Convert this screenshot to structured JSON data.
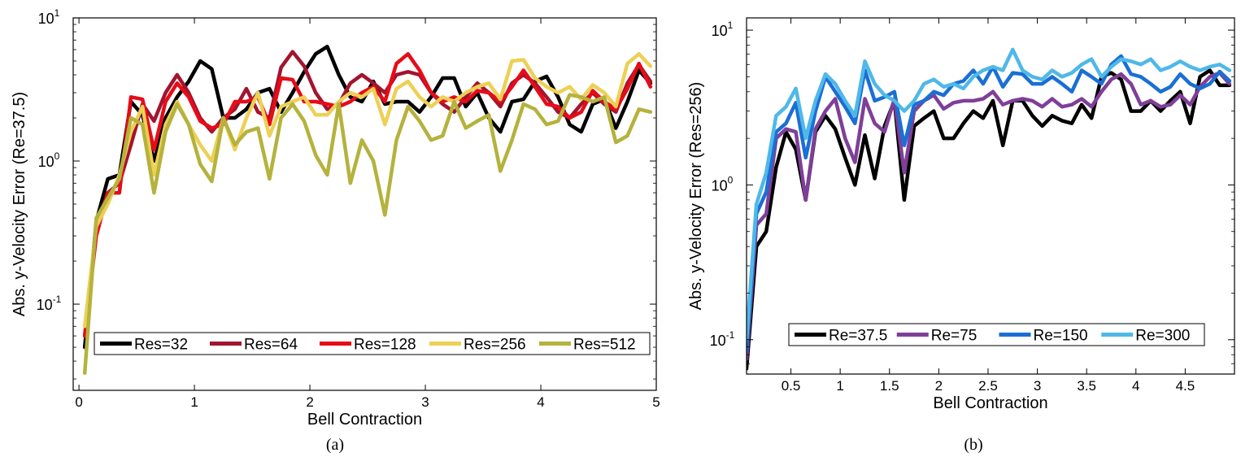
{
  "chart_data": [
    {
      "id": "a",
      "type": "line",
      "yscale": "log",
      "caption": "(a)",
      "xlabel": "Bell Contraction",
      "ylabel": "Abs. y-Velocity Error (Re=37.5)",
      "xlim": [
        -0.05,
        5
      ],
      "ylim": [
        0.025,
        10
      ],
      "xticks": [
        0,
        1,
        2,
        3,
        4,
        5
      ],
      "xtick_labels": [
        "0",
        "1",
        "2",
        "3",
        "4",
        "5"
      ],
      "yticks": [
        {
          "base": "10",
          "exp": "-1",
          "value": 0.1
        },
        {
          "base": "10",
          "exp": "0",
          "value": 1
        },
        {
          "base": "10",
          "exp": "1",
          "value": 10
        }
      ],
      "legend_location": "bottom",
      "series": [
        {
          "name": "Res=32",
          "color": "#000000",
          "x": [
            0.05,
            0.15,
            0.25,
            0.35,
            0.45,
            0.55,
            0.65,
            0.75,
            0.85,
            0.95,
            1.05,
            1.15,
            1.25,
            1.35,
            1.45,
            1.55,
            1.65,
            1.75,
            1.85,
            1.95,
            2.05,
            2.15,
            2.25,
            2.35,
            2.45,
            2.55,
            2.65,
            2.75,
            2.85,
            2.95,
            3.05,
            3.15,
            3.25,
            3.35,
            3.45,
            3.55,
            3.65,
            3.75,
            3.85,
            3.95,
            4.05,
            4.15,
            4.25,
            4.35,
            4.45,
            4.55,
            4.65,
            4.75,
            4.85,
            4.95
          ],
          "y": [
            0.05,
            0.38,
            0.75,
            0.8,
            2.6,
            2.1,
            1.0,
            2.0,
            2.8,
            3.6,
            5.0,
            4.4,
            2.0,
            2.0,
            2.3,
            3.0,
            3.2,
            2.2,
            3.0,
            4.2,
            5.6,
            6.3,
            4.0,
            2.8,
            2.6,
            3.6,
            2.5,
            2.6,
            2.6,
            2.2,
            2.8,
            3.8,
            3.8,
            2.4,
            3.0,
            2.0,
            1.6,
            2.6,
            2.7,
            3.6,
            3.9,
            2.8,
            1.8,
            1.6,
            2.5,
            2.7,
            1.7,
            2.6,
            4.3,
            3.5
          ]
        },
        {
          "name": "Res=64",
          "color": "#a3142e",
          "x": [
            0.05,
            0.15,
            0.25,
            0.35,
            0.45,
            0.55,
            0.65,
            0.75,
            0.85,
            0.95,
            1.05,
            1.15,
            1.25,
            1.35,
            1.45,
            1.55,
            1.65,
            1.75,
            1.85,
            1.95,
            2.05,
            2.15,
            2.25,
            2.35,
            2.45,
            2.55,
            2.65,
            2.75,
            2.85,
            2.95,
            3.05,
            3.15,
            3.25,
            3.35,
            3.45,
            3.55,
            3.65,
            3.75,
            3.85,
            3.95,
            4.05,
            4.15,
            4.25,
            4.35,
            4.45,
            4.55,
            4.65,
            4.75,
            4.85,
            4.95
          ],
          "y": [
            0.06,
            0.35,
            0.6,
            0.7,
            1.3,
            2.5,
            1.9,
            3.0,
            4.0,
            3.0,
            2.0,
            1.6,
            2.0,
            2.3,
            3.2,
            2.2,
            2.0,
            4.5,
            5.8,
            4.6,
            3.0,
            2.3,
            2.5,
            3.5,
            4.0,
            3.5,
            3.0,
            4.0,
            4.2,
            4.0,
            3.0,
            2.5,
            2.2,
            2.8,
            3.5,
            3.0,
            2.4,
            3.5,
            4.0,
            3.5,
            2.8,
            2.2,
            2.0,
            2.5,
            3.0,
            2.5,
            2.2,
            3.5,
            4.7,
            3.6
          ]
        },
        {
          "name": "Res=128",
          "color": "#e60c18",
          "x": [
            0.05,
            0.15,
            0.25,
            0.35,
            0.45,
            0.55,
            0.65,
            0.75,
            0.85,
            0.95,
            1.05,
            1.15,
            1.25,
            1.35,
            1.45,
            1.55,
            1.65,
            1.75,
            1.85,
            1.95,
            2.05,
            2.15,
            2.25,
            2.35,
            2.45,
            2.55,
            2.65,
            2.75,
            2.85,
            2.95,
            3.05,
            3.15,
            3.25,
            3.35,
            3.45,
            3.55,
            3.65,
            3.75,
            3.85,
            3.95,
            4.05,
            4.15,
            4.25,
            4.35,
            4.45,
            4.55,
            4.65,
            4.75,
            4.85,
            4.95
          ],
          "y": [
            0.06,
            0.3,
            0.6,
            0.6,
            2.8,
            2.7,
            1.2,
            2.6,
            3.5,
            2.8,
            1.9,
            1.7,
            1.8,
            2.6,
            2.6,
            2.8,
            1.8,
            3.8,
            3.7,
            2.6,
            2.6,
            2.5,
            2.4,
            2.6,
            3.0,
            3.3,
            2.6,
            4.8,
            5.6,
            4.3,
            3.0,
            2.6,
            2.8,
            2.6,
            3.1,
            3.0,
            2.6,
            3.3,
            4.3,
            3.3,
            2.5,
            2.4,
            2.0,
            2.2,
            3.1,
            2.6,
            2.3,
            3.2,
            4.8,
            3.3
          ]
        },
        {
          "name": "Res=256",
          "color": "#edd055",
          "x": [
            0.05,
            0.15,
            0.25,
            0.35,
            0.45,
            0.55,
            0.65,
            0.75,
            0.85,
            0.95,
            1.05,
            1.15,
            1.25,
            1.35,
            1.45,
            1.55,
            1.65,
            1.75,
            1.85,
            1.95,
            2.05,
            2.15,
            2.25,
            2.35,
            2.45,
            2.55,
            2.65,
            2.75,
            2.85,
            2.95,
            3.05,
            3.15,
            3.25,
            3.35,
            3.45,
            3.55,
            3.65,
            3.75,
            3.85,
            3.95,
            4.05,
            4.15,
            4.25,
            4.35,
            4.45,
            4.55,
            4.65,
            4.75,
            4.85,
            4.95
          ],
          "y": [
            0.07,
            0.35,
            0.5,
            0.8,
            1.6,
            2.4,
            0.8,
            1.8,
            2.6,
            1.8,
            1.3,
            1.0,
            2.0,
            1.2,
            2.0,
            3.0,
            1.5,
            2.4,
            2.6,
            2.8,
            2.1,
            2.1,
            2.6,
            3.0,
            2.8,
            3.2,
            1.8,
            3.2,
            3.6,
            2.8,
            2.4,
            2.8,
            2.6,
            3.0,
            3.3,
            3.5,
            2.7,
            5.0,
            5.1,
            3.8,
            3.3,
            3.0,
            3.3,
            2.7,
            3.4,
            3.0,
            2.4,
            4.8,
            5.6,
            4.6
          ]
        },
        {
          "name": "Res=512",
          "color": "#b5b23d",
          "x": [
            0.05,
            0.15,
            0.25,
            0.35,
            0.45,
            0.55,
            0.65,
            0.75,
            0.85,
            0.95,
            1.05,
            1.15,
            1.25,
            1.35,
            1.45,
            1.55,
            1.65,
            1.75,
            1.85,
            1.95,
            2.05,
            2.15,
            2.25,
            2.35,
            2.45,
            2.55,
            2.65,
            2.75,
            2.85,
            2.95,
            3.05,
            3.15,
            3.25,
            3.35,
            3.45,
            3.55,
            3.65,
            3.75,
            3.85,
            3.95,
            4.05,
            4.15,
            4.25,
            4.35,
            4.45,
            4.55,
            4.65,
            4.75,
            4.85,
            4.95
          ],
          "y": [
            0.033,
            0.4,
            0.55,
            0.75,
            2.0,
            1.8,
            0.6,
            1.6,
            2.5,
            1.8,
            0.95,
            0.72,
            2.0,
            1.3,
            1.6,
            1.7,
            0.75,
            2.0,
            2.5,
            1.9,
            1.1,
            0.8,
            2.5,
            0.7,
            1.4,
            1.0,
            0.42,
            1.4,
            2.4,
            1.9,
            1.4,
            1.5,
            2.6,
            1.7,
            1.9,
            2.1,
            0.85,
            1.4,
            2.5,
            2.3,
            1.8,
            1.9,
            2.9,
            2.8,
            2.6,
            2.8,
            1.35,
            1.5,
            2.3,
            2.2
          ]
        }
      ]
    },
    {
      "id": "b",
      "type": "line",
      "yscale": "log",
      "caption": "(b)",
      "xlabel": "Bell Contraction",
      "ylabel": "Abs. y-Velocity Error (Res=256)",
      "xlim": [
        0.05,
        5
      ],
      "ylim": [
        0.06,
        12
      ],
      "xticks": [
        0.5,
        1,
        1.5,
        2,
        2.5,
        3,
        3.5,
        4,
        4.5
      ],
      "xtick_labels": [
        "0.5",
        "1",
        "1.5",
        "2",
        "2.5",
        "3",
        "3.5",
        "4",
        "4.5"
      ],
      "yticks": [
        {
          "base": "10",
          "exp": "-1",
          "value": 0.1
        },
        {
          "base": "10",
          "exp": "0",
          "value": 1
        },
        {
          "base": "10",
          "exp": "1",
          "value": 10
        }
      ],
      "legend_location": "bottom",
      "series": [
        {
          "name": "Re=37.5",
          "color": "#000000",
          "x": [
            0.05,
            0.15,
            0.25,
            0.35,
            0.45,
            0.55,
            0.65,
            0.75,
            0.85,
            0.95,
            1.05,
            1.15,
            1.25,
            1.35,
            1.45,
            1.55,
            1.65,
            1.75,
            1.85,
            1.95,
            2.05,
            2.15,
            2.25,
            2.35,
            2.45,
            2.55,
            2.65,
            2.75,
            2.85,
            2.95,
            3.05,
            3.15,
            3.25,
            3.35,
            3.45,
            3.55,
            3.65,
            3.75,
            3.85,
            3.95,
            4.05,
            4.15,
            4.25,
            4.35,
            4.45,
            4.55,
            4.65,
            4.75,
            4.85,
            4.95
          ],
          "y": [
            0.065,
            0.4,
            0.5,
            1.3,
            2.2,
            1.7,
            0.8,
            2.2,
            2.8,
            2.3,
            1.5,
            1.0,
            2.1,
            1.1,
            2.4,
            3.5,
            0.8,
            2.4,
            2.7,
            3.0,
            2.0,
            2.0,
            2.5,
            3.0,
            2.7,
            3.5,
            1.8,
            3.5,
            3.5,
            2.8,
            2.4,
            2.8,
            2.6,
            2.5,
            3.3,
            2.7,
            5.0,
            5.3,
            4.8,
            3.0,
            3.0,
            3.5,
            3.0,
            3.5,
            4.0,
            2.5,
            5.0,
            5.5,
            4.4,
            4.4
          ]
        },
        {
          "name": "Re=75",
          "color": "#7f3f98",
          "x": [
            0.05,
            0.15,
            0.25,
            0.35,
            0.45,
            0.55,
            0.65,
            0.75,
            0.85,
            0.95,
            1.05,
            1.15,
            1.25,
            1.35,
            1.45,
            1.55,
            1.65,
            1.75,
            1.85,
            1.95,
            2.05,
            2.15,
            2.25,
            2.35,
            2.45,
            2.55,
            2.65,
            2.75,
            2.85,
            2.95,
            3.05,
            3.15,
            3.25,
            3.35,
            3.45,
            3.55,
            3.65,
            3.75,
            3.85,
            3.95,
            4.05,
            4.15,
            4.25,
            4.35,
            4.45,
            4.55,
            4.65,
            4.75,
            4.85,
            4.95
          ],
          "y": [
            0.075,
            0.55,
            0.65,
            2.0,
            2.3,
            2.2,
            0.8,
            2.3,
            3.0,
            3.6,
            2.0,
            1.4,
            3.6,
            2.5,
            2.2,
            3.6,
            1.2,
            3.0,
            3.5,
            3.8,
            3.1,
            3.4,
            3.5,
            3.5,
            3.6,
            4.0,
            3.3,
            3.5,
            3.6,
            3.5,
            3.2,
            3.6,
            3.2,
            3.3,
            3.6,
            3.2,
            4.0,
            4.8,
            5.2,
            4.5,
            3.3,
            3.5,
            3.2,
            3.3,
            3.8,
            3.3,
            4.3,
            5.0,
            5.3,
            4.5
          ]
        },
        {
          "name": "Re=150",
          "color": "#1a6fd4",
          "x": [
            0.05,
            0.15,
            0.25,
            0.35,
            0.45,
            0.55,
            0.65,
            0.75,
            0.85,
            0.95,
            1.05,
            1.15,
            1.25,
            1.35,
            1.45,
            1.55,
            1.65,
            1.75,
            1.85,
            1.95,
            2.05,
            2.15,
            2.25,
            2.35,
            2.45,
            2.55,
            2.65,
            2.75,
            2.85,
            2.95,
            3.05,
            3.15,
            3.25,
            3.35,
            3.45,
            3.55,
            3.65,
            3.75,
            3.85,
            3.95,
            4.05,
            4.15,
            4.25,
            4.35,
            4.45,
            4.55,
            4.65,
            4.75,
            4.85,
            4.95
          ],
          "y": [
            0.085,
            0.65,
            0.9,
            2.2,
            2.5,
            3.4,
            1.5,
            3.0,
            5.0,
            4.0,
            3.2,
            2.5,
            5.5,
            3.5,
            3.7,
            4.0,
            1.8,
            3.3,
            3.5,
            4.0,
            3.8,
            4.5,
            4.7,
            5.5,
            4.5,
            5.8,
            4.3,
            5.3,
            5.2,
            4.5,
            4.5,
            5.0,
            4.5,
            4.0,
            5.5,
            5.0,
            4.5,
            6.0,
            6.8,
            5.2,
            5.0,
            4.5,
            4.0,
            4.3,
            5.2,
            4.5,
            4.2,
            4.5,
            5.4,
            4.7
          ]
        },
        {
          "name": "Re=300",
          "color": "#4fb8e8",
          "x": [
            0.05,
            0.15,
            0.25,
            0.35,
            0.45,
            0.55,
            0.65,
            0.75,
            0.85,
            0.95,
            1.05,
            1.15,
            1.25,
            1.35,
            1.45,
            1.55,
            1.65,
            1.75,
            1.85,
            1.95,
            2.05,
            2.15,
            2.25,
            2.35,
            2.45,
            2.55,
            2.65,
            2.75,
            2.85,
            2.95,
            3.05,
            3.15,
            3.25,
            3.35,
            3.45,
            3.55,
            3.65,
            3.75,
            3.85,
            3.95,
            4.05,
            4.15,
            4.25,
            4.35,
            4.45,
            4.55,
            4.65,
            4.75,
            4.85,
            4.95
          ],
          "y": [
            0.1,
            0.75,
            1.2,
            2.8,
            3.2,
            4.2,
            2.0,
            3.5,
            5.2,
            4.5,
            3.5,
            2.8,
            6.3,
            4.5,
            3.8,
            3.5,
            3.0,
            3.5,
            4.5,
            4.8,
            4.3,
            4.5,
            4.2,
            5.0,
            5.5,
            5.8,
            5.5,
            7.5,
            5.5,
            5.0,
            4.8,
            5.5,
            5.0,
            5.3,
            6.0,
            6.5,
            5.0,
            5.8,
            6.5,
            6.3,
            6.0,
            6.5,
            5.5,
            5.8,
            6.3,
            5.8,
            5.5,
            5.8,
            6.0,
            5.5
          ]
        }
      ]
    }
  ]
}
